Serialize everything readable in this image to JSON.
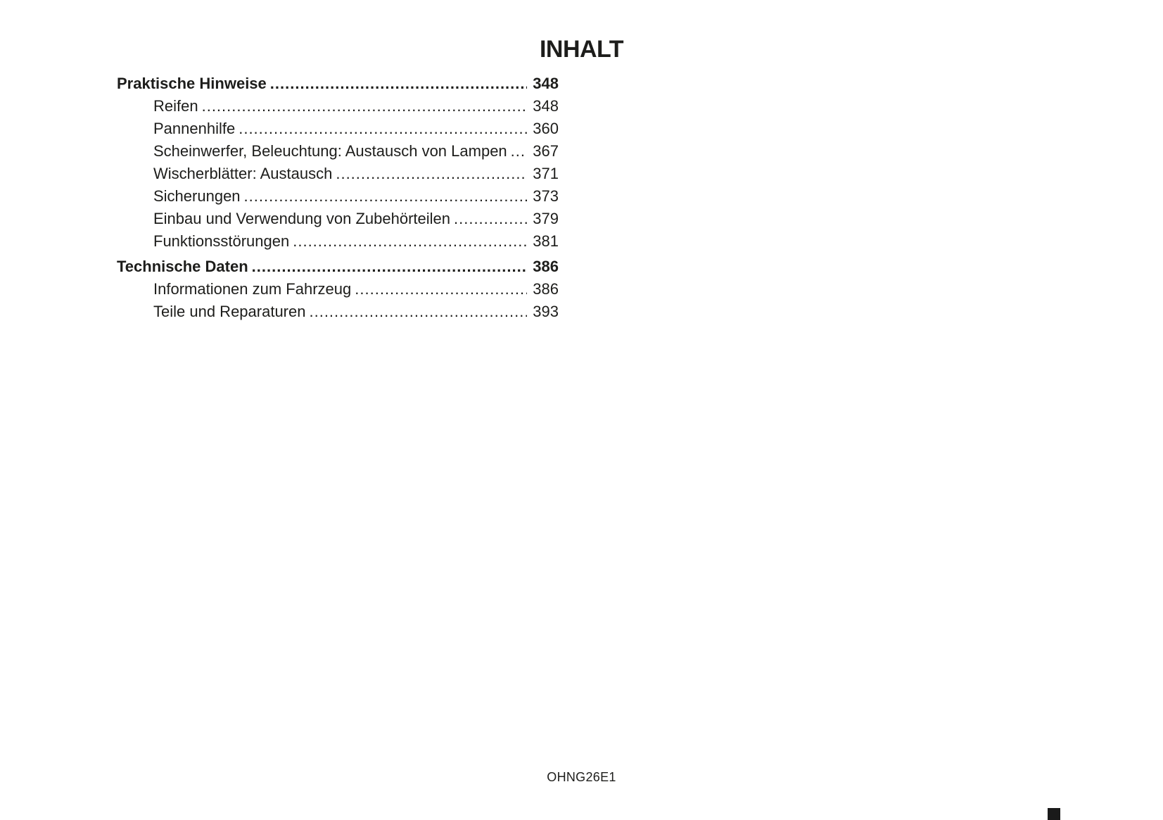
{
  "page": {
    "title": "INHALT",
    "footer_code": "OHNG26E1",
    "text_color": "#1d1d1b",
    "background_color": "#ffffff",
    "corner_marker_color": "#1a1a1a"
  },
  "toc": {
    "entries": [
      {
        "label": "Praktische Hinweise",
        "page": "348",
        "level": "section"
      },
      {
        "label": "Reifen",
        "page": "348",
        "level": "sub"
      },
      {
        "label": "Pannenhilfe",
        "page": "360",
        "level": "sub"
      },
      {
        "label": "Scheinwerfer, Beleuchtung: Austausch von Lampen",
        "page": "367",
        "level": "sub"
      },
      {
        "label": "Wischerblätter: Austausch",
        "page": "371",
        "level": "sub"
      },
      {
        "label": "Sicherungen",
        "page": "373",
        "level": "sub"
      },
      {
        "label": "Einbau und Verwendung von Zubehörteilen",
        "page": "379",
        "level": "sub"
      },
      {
        "label": "Funktionsstörungen",
        "page": "381",
        "level": "sub"
      },
      {
        "label": "Technische Daten",
        "page": "386",
        "level": "section"
      },
      {
        "label": "Informationen zum Fahrzeug",
        "page": "386",
        "level": "sub"
      },
      {
        "label": "Teile und Reparaturen",
        "page": "393",
        "level": "sub"
      }
    ]
  }
}
